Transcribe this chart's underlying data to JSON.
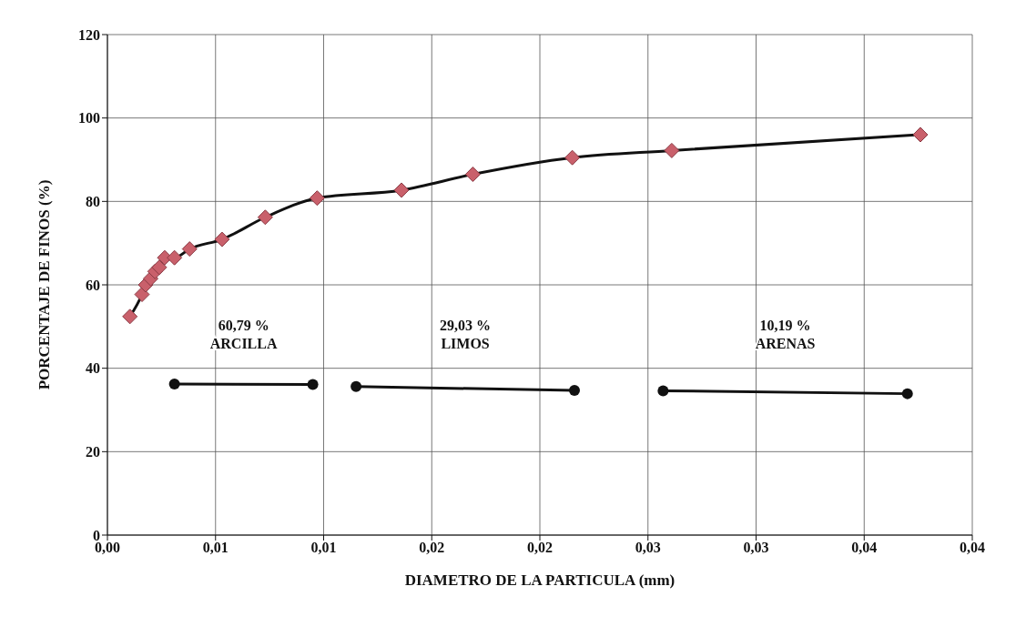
{
  "chart_data": {
    "type": "line",
    "xlabel": "DIAMETRO DE LA PARTICULA (mm)",
    "ylabel": "PORCENTAJE DE FINOS (%)",
    "xlim": [
      0,
      0.04
    ],
    "xticks": [
      {
        "value": 0,
        "label": "0,00"
      },
      {
        "value": 0.005,
        "label": "0,01"
      },
      {
        "value": 0.01,
        "label": "0,01"
      },
      {
        "value": 0.015,
        "label": "0,02"
      },
      {
        "value": 0.02,
        "label": "0,02"
      },
      {
        "value": 0.025,
        "label": "0,03"
      },
      {
        "value": 0.03,
        "label": "0,03"
      },
      {
        "value": 0.035,
        "label": "0,04"
      },
      {
        "value": 0.04,
        "label": "0,04"
      }
    ],
    "ylim": [
      0,
      120
    ],
    "yticks": [
      0,
      20,
      40,
      60,
      80,
      100,
      120
    ],
    "grid": true,
    "legend": false,
    "series": [
      {
        "color": "#111111",
        "marker": "diamond",
        "colors": [
          "#c9606b",
          "#c9606b",
          "#c9606b",
          "#c9606b",
          "#c9606b",
          "#c9606b",
          "#c9606b",
          "#c9606b",
          "#c9606b",
          "#c9606b",
          "#c9606b",
          "#c9606b",
          "#c9606b",
          "#c9606b",
          "#c9606b",
          "#c9606b",
          "#c9606b"
        ],
        "x": [
          0.00104,
          0.0016,
          0.00177,
          0.002,
          0.0022,
          0.0024,
          0.00265,
          0.0031,
          0.0038,
          0.0053,
          0.0073,
          0.0097,
          0.0136,
          0.0169,
          0.0215,
          0.0261,
          0.0376
        ],
        "values": [
          52.4,
          57.7,
          60.0,
          61.5,
          63.2,
          64.2,
          66.5,
          66.5,
          68.6,
          70.9,
          76.2,
          80.8,
          82.7,
          86.5,
          90.5,
          92.2,
          96.0
        ]
      },
      {
        "color": "#111111",
        "marker": "circle",
        "x": [
          0.0031,
          0.0095
        ],
        "values": [
          36.2,
          36.1
        ]
      },
      {
        "color": "#111111",
        "marker": "circle",
        "x": [
          0.0115,
          0.0216
        ],
        "values": [
          35.6,
          34.7
        ]
      },
      {
        "color": "#111111",
        "marker": "circle",
        "x": [
          0.0257,
          0.037
        ],
        "values": [
          34.6,
          33.9
        ]
      }
    ],
    "annotations": [
      "60,79 %\nARCILLA",
      "29,03 %\nLIMOS",
      "10,19 %\nARENAS"
    ]
  }
}
